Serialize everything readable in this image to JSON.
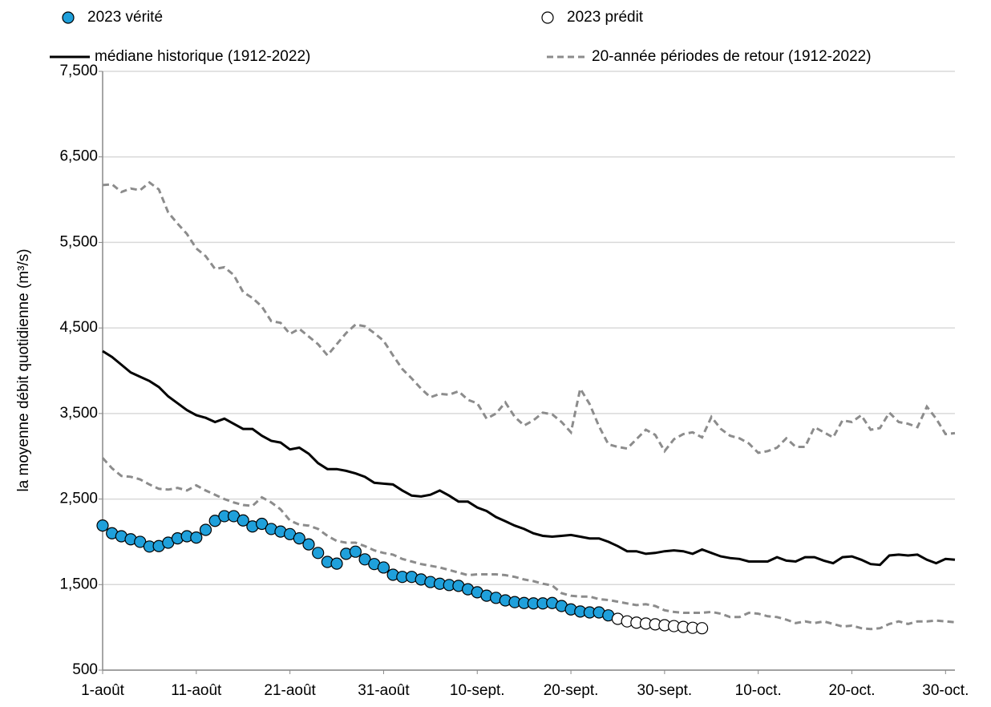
{
  "chart_data": {
    "type": "line",
    "y_label": "la moyenne débit quotidienne (m³/s)",
    "categories": [
      "1-août",
      null,
      null,
      null,
      null,
      null,
      null,
      null,
      null,
      null,
      "11-août",
      null,
      null,
      null,
      null,
      null,
      null,
      null,
      null,
      null,
      "21-août",
      null,
      null,
      null,
      null,
      null,
      null,
      null,
      null,
      null,
      "31-août",
      null,
      null,
      null,
      null,
      null,
      null,
      null,
      null,
      null,
      "10-sept.",
      null,
      null,
      null,
      null,
      null,
      null,
      null,
      null,
      null,
      "20-sept.",
      null,
      null,
      null,
      null,
      null,
      null,
      null,
      null,
      null,
      "30-sept.",
      null,
      null,
      null,
      null,
      null,
      null,
      null,
      null,
      null,
      "10-oct.",
      null,
      null,
      null,
      null,
      null,
      null,
      null,
      null,
      null,
      "20-oct.",
      null,
      null,
      null,
      null,
      null,
      null,
      null,
      null,
      null,
      "30-oct.",
      null
    ],
    "ylim": [
      500,
      7500
    ],
    "yticks": [
      {
        "value": 500,
        "label": "500"
      },
      {
        "value": 1500,
        "label": "1,500"
      },
      {
        "value": 2500,
        "label": "2,500"
      },
      {
        "value": 3500,
        "label": "3,500"
      },
      {
        "value": 4500,
        "label": "4,500"
      },
      {
        "value": 5500,
        "label": "5,500"
      },
      {
        "value": 6500,
        "label": "6,500"
      },
      {
        "value": 7500,
        "label": "7,500"
      }
    ],
    "grid": true,
    "series": [
      {
        "name": "2023 vérité",
        "style": "markers",
        "color": "#1fa0db",
        "values": [
          2190,
          2100,
          2065,
          2030,
          2000,
          1945,
          1950,
          1990,
          2040,
          2065,
          2050,
          2140,
          2245,
          2300,
          2300,
          2250,
          2180,
          2210,
          2150,
          2120,
          2090,
          2040,
          1970,
          1870,
          1765,
          1745,
          1860,
          1885,
          1795,
          1740,
          1700,
          1615,
          1590,
          1590,
          1560,
          1530,
          1510,
          1495,
          1485,
          1445,
          1410,
          1370,
          1345,
          1315,
          1295,
          1285,
          1280,
          1280,
          1285,
          1250,
          1210,
          1185,
          1175,
          1175,
          1140,
          null,
          null,
          null,
          null,
          null,
          null,
          null,
          null,
          null,
          null,
          null,
          null,
          null,
          null,
          null,
          null,
          null,
          null,
          null,
          null,
          null,
          null,
          null,
          null,
          null,
          null,
          null,
          null,
          null,
          null,
          null,
          null,
          null,
          null,
          null,
          null,
          null
        ]
      },
      {
        "name": "2023 prédit",
        "style": "markers",
        "color": "#ffffff",
        "values": [
          null,
          null,
          null,
          null,
          null,
          null,
          null,
          null,
          null,
          null,
          null,
          null,
          null,
          null,
          null,
          null,
          null,
          null,
          null,
          null,
          null,
          null,
          null,
          null,
          null,
          null,
          null,
          null,
          null,
          null,
          null,
          null,
          null,
          null,
          null,
          null,
          null,
          null,
          null,
          null,
          null,
          null,
          null,
          null,
          null,
          null,
          null,
          null,
          null,
          null,
          null,
          null,
          null,
          null,
          null,
          1100,
          1070,
          1055,
          1045,
          1035,
          1025,
          1015,
          1005,
          995,
          990,
          null,
          null,
          null,
          null,
          null,
          null,
          null,
          null,
          null,
          null,
          null,
          null,
          null,
          null,
          null,
          null,
          null,
          null,
          null,
          null,
          null,
          null,
          null,
          null,
          null,
          null,
          null
        ]
      },
      {
        "name": "médiane historique (1912-2022)",
        "style": "solid",
        "color": "#000000",
        "values": [
          4230,
          4160,
          4070,
          3980,
          3930,
          3880,
          3810,
          3700,
          3620,
          3540,
          3480,
          3450,
          3400,
          3440,
          3380,
          3320,
          3320,
          3240,
          3180,
          3160,
          3080,
          3100,
          3030,
          2920,
          2850,
          2850,
          2830,
          2800,
          2760,
          2690,
          2680,
          2670,
          2600,
          2540,
          2530,
          2550,
          2600,
          2540,
          2470,
          2470,
          2400,
          2360,
          2290,
          2240,
          2190,
          2150,
          2100,
          2070,
          2060,
          2070,
          2080,
          2060,
          2040,
          2040,
          2000,
          1950,
          1890,
          1890,
          1860,
          1870,
          1890,
          1900,
          1890,
          1860,
          1910,
          1870,
          1830,
          1810,
          1800,
          1770,
          1770,
          1770,
          1820,
          1780,
          1770,
          1820,
          1820,
          1780,
          1750,
          1820,
          1830,
          1790,
          1740,
          1730,
          1840,
          1850,
          1840,
          1850,
          1790,
          1750,
          1800,
          1790
        ]
      },
      {
        "name": "20-année périodes de retour (1912-2022)",
        "style": "dashed",
        "color": "#8c8c8c",
        "values": [
          6170,
          6180,
          6090,
          6130,
          6110,
          6200,
          6120,
          5850,
          5720,
          5600,
          5430,
          5340,
          5190,
          5210,
          5120,
          4920,
          4850,
          4750,
          4580,
          4560,
          4430,
          4490,
          4400,
          4310,
          4180,
          4310,
          4440,
          4540,
          4520,
          4440,
          4350,
          4180,
          4020,
          3910,
          3790,
          3690,
          3730,
          3720,
          3760,
          3660,
          3620,
          3440,
          3500,
          3630,
          3460,
          3360,
          3420,
          3510,
          3490,
          3400,
          3280,
          3790,
          3610,
          3350,
          3140,
          3110,
          3090,
          3200,
          3310,
          3250,
          3060,
          3200,
          3260,
          3280,
          3220,
          3460,
          3320,
          3240,
          3210,
          3150,
          3040,
          3060,
          3100,
          3210,
          3110,
          3110,
          3340,
          3280,
          3220,
          3420,
          3400,
          3480,
          3310,
          3330,
          3510,
          3400,
          3380,
          3340,
          3580,
          3440,
          3260,
          3270
        ]
      },
      {
        "style": "dashed",
        "color": "#8c8c8c",
        "values": [
          2980,
          2860,
          2770,
          2760,
          2730,
          2670,
          2620,
          2610,
          2630,
          2600,
          2660,
          2600,
          2550,
          2500,
          2460,
          2430,
          2420,
          2520,
          2460,
          2380,
          2250,
          2200,
          2190,
          2150,
          2070,
          2010,
          1990,
          1990,
          1950,
          1900,
          1870,
          1850,
          1800,
          1770,
          1740,
          1720,
          1700,
          1670,
          1640,
          1610,
          1620,
          1620,
          1620,
          1610,
          1590,
          1560,
          1540,
          1510,
          1490,
          1400,
          1370,
          1360,
          1360,
          1330,
          1320,
          1300,
          1280,
          1260,
          1270,
          1250,
          1200,
          1180,
          1170,
          1170,
          1170,
          1180,
          1160,
          1120,
          1120,
          1170,
          1160,
          1130,
          1120,
          1090,
          1050,
          1070,
          1050,
          1070,
          1040,
          1010,
          1020,
          990,
          980,
          990,
          1040,
          1070,
          1040,
          1070,
          1070,
          1080,
          1070,
          1060
        ]
      }
    ]
  }
}
